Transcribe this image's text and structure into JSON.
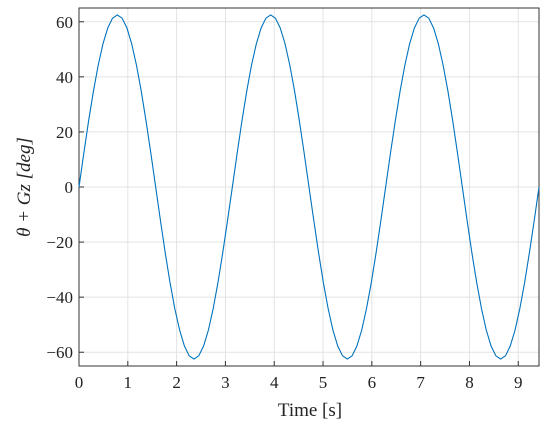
{
  "chart_data": {
    "type": "line",
    "xlabel": "Time [s]",
    "ylabel": "θ + Gz [deg]",
    "xlim": [
      0,
      9.425
    ],
    "ylim": [
      -65,
      65
    ],
    "xticks": [
      0,
      1,
      2,
      3,
      4,
      5,
      6,
      7,
      8,
      9
    ],
    "yticks": [
      {
        "value": -60,
        "label": "−60"
      },
      {
        "value": -40,
        "label": "−40"
      },
      {
        "value": -20,
        "label": "−20"
      },
      0,
      20,
      40,
      60
    ],
    "grid": true,
    "x": [
      0,
      0.098,
      0.196,
      0.295,
      0.393,
      0.491,
      0.589,
      0.687,
      0.785,
      0.884,
      0.982,
      1.08,
      1.178,
      1.276,
      1.374,
      1.473,
      1.571,
      1.669,
      1.767,
      1.865,
      1.963,
      2.062,
      2.16,
      2.258,
      2.356,
      2.454,
      2.553,
      2.651,
      2.749,
      2.847,
      2.945,
      3.043,
      3.142,
      3.24,
      3.338,
      3.436,
      3.534,
      3.633,
      3.731,
      3.829,
      3.927,
      4.025,
      4.123,
      4.222,
      4.32,
      4.418,
      4.516,
      4.614,
      4.712,
      4.811,
      4.909,
      5.007,
      5.105,
      5.203,
      5.301,
      5.4,
      5.498,
      5.596,
      5.694,
      5.792,
      5.89,
      5.989,
      6.087,
      6.185,
      6.283,
      6.381,
      6.48,
      6.578,
      6.676,
      6.774,
      6.872,
      6.97,
      7.069,
      7.167,
      7.265,
      7.363,
      7.461,
      7.56,
      7.658,
      7.756,
      7.854,
      7.952,
      8.05,
      8.149,
      8.247,
      8.345,
      8.443,
      8.541,
      8.639,
      8.738,
      8.836,
      8.934,
      9.032,
      9.13,
      9.228,
      9.327,
      9.425
    ],
    "series": [
      {
        "color": "#0072bd",
        "values": [
          0,
          12.19,
          23.92,
          34.72,
          44.19,
          51.97,
          57.74,
          61.3,
          62.5,
          61.3,
          57.74,
          51.97,
          44.19,
          34.72,
          23.92,
          12.19,
          0,
          -12.19,
          -23.92,
          -34.72,
          -44.19,
          -51.97,
          -57.74,
          -61.3,
          -62.5,
          -61.3,
          -57.74,
          -51.97,
          -44.19,
          -34.72,
          -23.92,
          -12.19,
          0,
          12.19,
          23.92,
          34.72,
          44.19,
          51.97,
          57.74,
          61.3,
          62.5,
          61.3,
          57.74,
          51.97,
          44.19,
          34.72,
          23.92,
          12.19,
          0,
          -12.19,
          -23.92,
          -34.72,
          -44.19,
          -51.97,
          -57.74,
          -61.3,
          -62.5,
          -61.3,
          -57.74,
          -51.97,
          -44.19,
          -34.72,
          -23.92,
          -12.19,
          0,
          12.19,
          23.92,
          34.72,
          44.19,
          51.97,
          57.74,
          61.3,
          62.5,
          61.3,
          57.74,
          51.97,
          44.19,
          34.72,
          23.92,
          12.19,
          0,
          -12.19,
          -23.92,
          -34.72,
          -44.19,
          -51.97,
          -57.74,
          -61.3,
          -62.5,
          -61.3,
          -57.74,
          -51.97,
          -44.19,
          -34.72,
          -23.92,
          -12.19,
          0
        ]
      }
    ]
  }
}
